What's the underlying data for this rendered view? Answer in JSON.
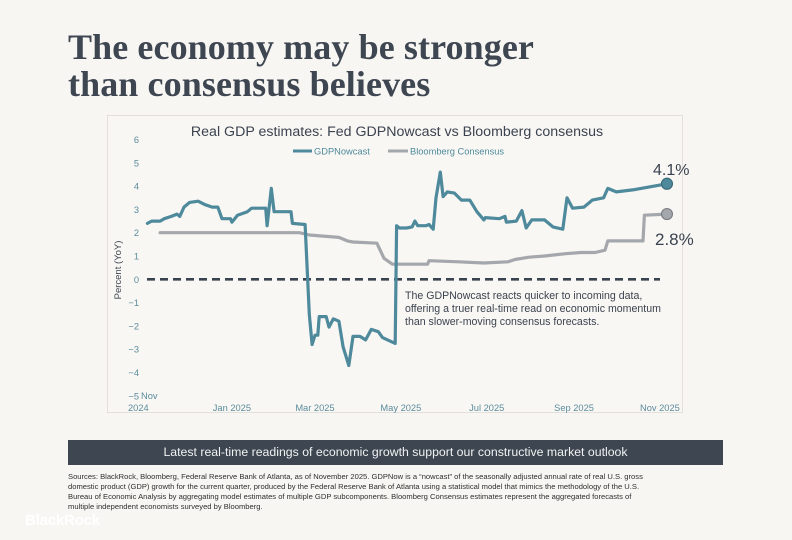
{
  "headline": {
    "line1": "The economy may be stronger",
    "line2": "than consensus believes"
  },
  "banner": {
    "text": "Latest real-time readings of economic growth support our constructive market outlook"
  },
  "sources": {
    "lines": [
      "Sources: BlackRock, Bloomberg, Federal Reserve Bank of Atlanta, as of November 2025. GDPNow is a “nowcast” of the seasonally adjusted annual rate of real U.S. gross",
      "domestic product (GDP) growth for the current quarter, produced by the Federal Reserve Bank of Atlanta using a statistical model that mimics the methodology of the U.S.",
      "Bureau of Economic Analysis by aggregating model estimates of multiple GDP subcomponents. Bloomberg Consensus estimates represent the aggregated forecasts of",
      "multiple independent economists surveyed by Bloomberg."
    ]
  },
  "logo": {
    "text": "BlackRock"
  },
  "chart_data": {
    "type": "line",
    "title": "Real GDP estimates: Fed GDPNowcast vs Bloomberg consensus",
    "xlabel": "",
    "ylabel": "Percent (YoY)",
    "ylim": [
      -5,
      6
    ],
    "xlim": [
      "2024-11-01",
      "2025-11-06"
    ],
    "grid": false,
    "legend": "top-center",
    "yticks": [
      {
        "value": 6,
        "label": "6"
      },
      {
        "value": 5,
        "label": "5"
      },
      {
        "value": 4,
        "label": "4"
      },
      {
        "value": 3,
        "label": "3"
      },
      {
        "value": 2,
        "label": "2"
      },
      {
        "value": 1,
        "label": "1"
      },
      {
        "value": 0,
        "label": "0"
      },
      {
        "value": -1,
        "label": "−1"
      },
      {
        "value": -2,
        "label": "−2"
      },
      {
        "value": -3,
        "label": "−3"
      },
      {
        "value": -4,
        "label": "−4"
      },
      {
        "value": -5,
        "label": "−5"
      }
    ],
    "xticks": [
      {
        "date": "2024-11-01",
        "label": "Nov 2024"
      },
      {
        "date": "2025-01-01",
        "label": "Jan 2025"
      },
      {
        "date": "2025-03-01",
        "label": "Mar 2025"
      },
      {
        "date": "2025-05-01",
        "label": "May 2025"
      },
      {
        "date": "2025-07-01",
        "label": "Jul 2025"
      },
      {
        "date": "2025-09-01",
        "label": "Sep 2025"
      },
      {
        "date": "2025-11-01",
        "label": "Nov 2025"
      }
    ],
    "reference_line": {
      "value": 0,
      "style": "dashed",
      "color": "#3a4350"
    },
    "annotation": [
      "The GDPNowcast reacts quicker to incoming data,",
      "offering a truer real-time read on economic momentum",
      "than slower-moving consensus forecasts."
    ],
    "series": [
      {
        "name": "Bloomberg Consensus",
        "color": "#a4a7ac",
        "end_label": "2.8%",
        "points": [
          [
            "2024-11-11",
            2.0
          ],
          [
            "2025-02-18",
            2.0
          ],
          [
            "2025-02-25",
            1.9
          ],
          [
            "2025-03-18",
            1.8
          ],
          [
            "2025-03-24",
            1.65
          ],
          [
            "2025-03-28",
            1.6
          ],
          [
            "2025-04-14",
            1.55
          ],
          [
            "2025-04-19",
            0.9
          ],
          [
            "2025-04-25",
            0.65
          ],
          [
            "2025-05-20",
            0.65
          ],
          [
            "2025-05-21",
            0.8
          ],
          [
            "2025-06-11",
            0.75
          ],
          [
            "2025-06-29",
            0.7
          ],
          [
            "2025-07-16",
            0.75
          ],
          [
            "2025-07-21",
            0.85
          ],
          [
            "2025-07-31",
            0.95
          ],
          [
            "2025-08-11",
            1.0
          ],
          [
            "2025-08-26",
            1.1
          ],
          [
            "2025-09-06",
            1.15
          ],
          [
            "2025-09-16",
            1.15
          ],
          [
            "2025-09-23",
            1.25
          ],
          [
            "2025-09-25",
            1.65
          ],
          [
            "2025-10-20",
            1.65
          ],
          [
            "2025-10-21",
            2.75
          ],
          [
            "2025-11-06",
            2.8
          ]
        ]
      },
      {
        "name": "GDPNowcast",
        "color": "#4e8a9c",
        "end_label": "4.1%",
        "points": [
          [
            "2024-11-02",
            2.4
          ],
          [
            "2024-11-05",
            2.5
          ],
          [
            "2024-11-11",
            2.5
          ],
          [
            "2024-11-14",
            2.6
          ],
          [
            "2024-11-19",
            2.7
          ],
          [
            "2024-11-23",
            2.8
          ],
          [
            "2024-11-25",
            2.7
          ],
          [
            "2024-11-28",
            3.1
          ],
          [
            "2024-12-02",
            3.3
          ],
          [
            "2024-12-08",
            3.35
          ],
          [
            "2024-12-13",
            3.2
          ],
          [
            "2024-12-18",
            3.1
          ],
          [
            "2024-12-22",
            3.1
          ],
          [
            "2024-12-25",
            2.6
          ],
          [
            "2024-12-31",
            2.6
          ],
          [
            "2025-01-01",
            2.45
          ],
          [
            "2025-01-05",
            2.75
          ],
          [
            "2025-01-12",
            2.9
          ],
          [
            "2025-01-15",
            3.05
          ],
          [
            "2025-01-25",
            3.05
          ],
          [
            "2025-01-26",
            2.3
          ],
          [
            "2025-01-29",
            3.9
          ],
          [
            "2025-01-31",
            2.9
          ],
          [
            "2025-02-12",
            2.9
          ],
          [
            "2025-02-13",
            2.4
          ],
          [
            "2025-02-22",
            2.35
          ],
          [
            "2025-02-25",
            -1.5
          ],
          [
            "2025-02-27",
            -2.8
          ],
          [
            "2025-03-01",
            -2.4
          ],
          [
            "2025-03-03",
            -2.4
          ],
          [
            "2025-03-04",
            -1.6
          ],
          [
            "2025-03-09",
            -1.6
          ],
          [
            "2025-03-11",
            -2.05
          ],
          [
            "2025-03-14",
            -1.7
          ],
          [
            "2025-03-18",
            -1.8
          ],
          [
            "2025-03-21",
            -2.9
          ],
          [
            "2025-03-25",
            -3.7
          ],
          [
            "2025-03-28",
            -2.45
          ],
          [
            "2025-04-02",
            -2.45
          ],
          [
            "2025-04-06",
            -2.6
          ],
          [
            "2025-04-10",
            -2.15
          ],
          [
            "2025-04-15",
            -2.25
          ],
          [
            "2025-04-18",
            -2.5
          ],
          [
            "2025-04-27",
            -2.75
          ],
          [
            "2025-04-28",
            2.3
          ],
          [
            "2025-04-30",
            2.2
          ],
          [
            "2025-05-05",
            2.2
          ],
          [
            "2025-05-09",
            2.25
          ],
          [
            "2025-05-11",
            2.5
          ],
          [
            "2025-05-13",
            2.3
          ],
          [
            "2025-05-19",
            2.3
          ],
          [
            "2025-05-21",
            2.35
          ],
          [
            "2025-05-24",
            2.15
          ],
          [
            "2025-05-26",
            3.5
          ],
          [
            "2025-05-29",
            4.6
          ],
          [
            "2025-05-31",
            3.55
          ],
          [
            "2025-06-03",
            3.75
          ],
          [
            "2025-06-08",
            3.7
          ],
          [
            "2025-06-13",
            3.4
          ],
          [
            "2025-06-19",
            3.4
          ],
          [
            "2025-06-24",
            2.9
          ],
          [
            "2025-06-29",
            2.55
          ],
          [
            "2025-06-30",
            2.65
          ],
          [
            "2025-07-10",
            2.6
          ],
          [
            "2025-07-14",
            2.7
          ],
          [
            "2025-07-15",
            2.45
          ],
          [
            "2025-07-22",
            2.5
          ],
          [
            "2025-07-26",
            2.95
          ],
          [
            "2025-07-29",
            2.2
          ],
          [
            "2025-08-02",
            2.55
          ],
          [
            "2025-08-11",
            2.55
          ],
          [
            "2025-08-17",
            2.25
          ],
          [
            "2025-08-24",
            2.15
          ],
          [
            "2025-08-27",
            3.5
          ],
          [
            "2025-08-31",
            3.05
          ],
          [
            "2025-09-08",
            3.1
          ],
          [
            "2025-09-14",
            3.4
          ],
          [
            "2025-09-22",
            3.5
          ],
          [
            "2025-09-25",
            3.9
          ],
          [
            "2025-10-01",
            3.75
          ],
          [
            "2025-10-14",
            3.85
          ],
          [
            "2025-11-06",
            4.1
          ]
        ]
      }
    ]
  }
}
